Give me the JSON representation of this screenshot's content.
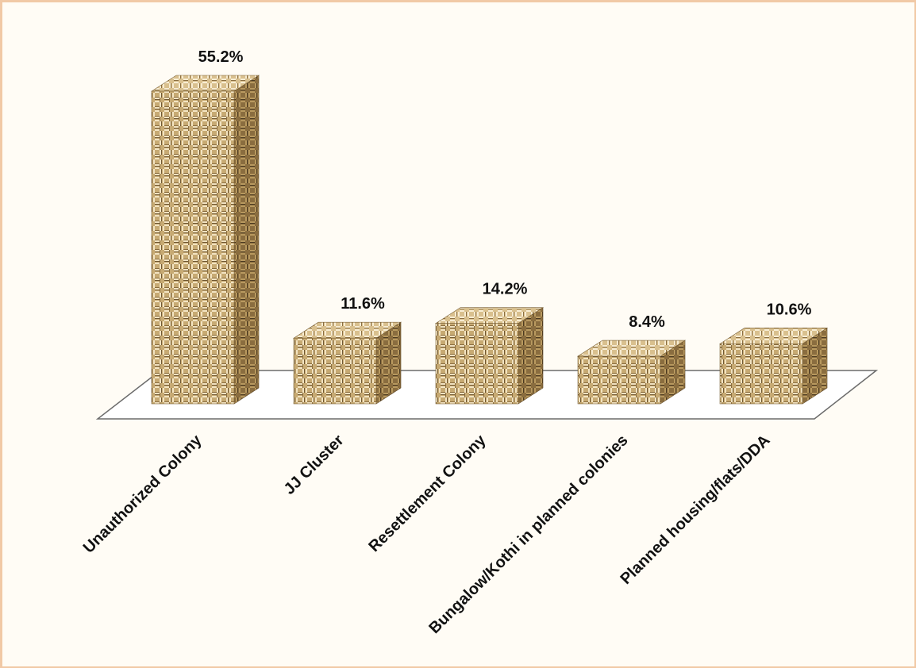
{
  "chart_data": {
    "type": "bar",
    "style": "3d-textured",
    "categories": [
      "Unauthorized Colony",
      "JJ Cluster",
      "Resettlement Colony",
      "Bungalow/Kothi in planned colonies",
      "Planned housing/flats/DDA"
    ],
    "values": [
      55.2,
      11.6,
      14.2,
      8.4,
      10.6
    ],
    "data_labels": [
      "55.2%",
      "11.6%",
      "14.2%",
      "8.4%",
      "10.6%"
    ],
    "unit": "%",
    "ylim": [
      0,
      60
    ],
    "grid": false,
    "legend": "none",
    "colors": {
      "face": "#bfa16b",
      "side": "#8a6d3f",
      "top": "#d9c08e",
      "weave_dark": "#6e5631",
      "weave_light": "#f2e3c1",
      "floor_stroke": "#555555"
    }
  }
}
